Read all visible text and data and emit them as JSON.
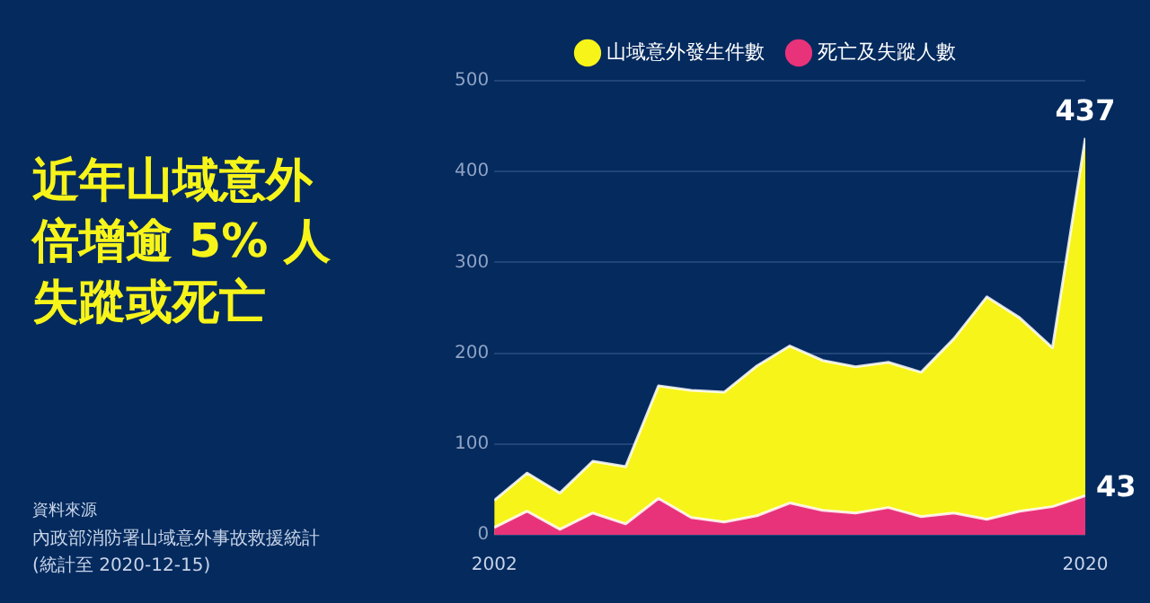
{
  "chart_data": {
    "type": "area",
    "title": "近年山域意外倍增逾 5% 人失蹤或死亡",
    "annotations": [
      "資料來源",
      "內政部消防署山域意外事故救援統計",
      "(統計至 2020-12-15)"
    ],
    "x": [
      2002,
      2003,
      2004,
      2005,
      2006,
      2007,
      2008,
      2009,
      2010,
      2011,
      2012,
      2013,
      2014,
      2015,
      2016,
      2017,
      2018,
      2019,
      2020
    ],
    "xlim": [
      2002,
      2020
    ],
    "xticks": [
      2002,
      2020
    ],
    "ylim": [
      0,
      500
    ],
    "yticks": [
      0,
      100,
      200,
      300,
      400,
      500
    ],
    "grid": "y",
    "legend": "top",
    "series": [
      {
        "name": "山域意外發生件數",
        "color": "#f7f41a",
        "values": [
          38,
          68,
          46,
          81,
          75,
          164,
          159,
          157,
          186,
          208,
          192,
          185,
          190,
          179,
          216,
          262,
          239,
          206,
          437
        ],
        "value_labels": [
          null,
          null,
          null,
          null,
          null,
          null,
          null,
          null,
          null,
          null,
          null,
          null,
          null,
          null,
          null,
          null,
          null,
          null,
          "437"
        ]
      },
      {
        "name": "死亡及失蹤人數",
        "color": "#e8337a",
        "values": [
          8,
          26,
          6,
          24,
          12,
          40,
          19,
          14,
          21,
          35,
          27,
          24,
          30,
          20,
          24,
          17,
          26,
          31,
          43
        ],
        "value_labels": [
          null,
          null,
          null,
          null,
          null,
          null,
          null,
          null,
          null,
          null,
          null,
          null,
          null,
          null,
          null,
          null,
          null,
          null,
          "43"
        ]
      }
    ]
  }
}
